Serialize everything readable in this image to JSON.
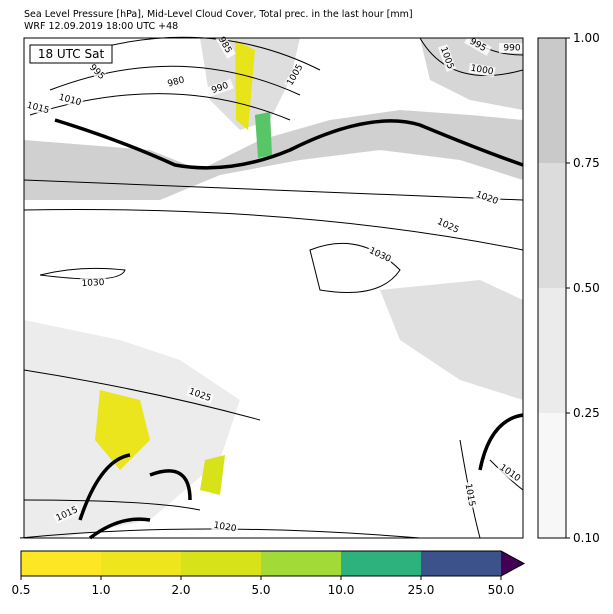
{
  "header": {
    "line1": "Sea Level Pressure [hPa], Mid-Level Cloud Cover, Total prec. in the last hour [mm]",
    "line2": "WRF 12.09.2019 18:00 UTC +48"
  },
  "map": {
    "time_label": "18 UTC Sat",
    "contour_labels": [
      "985",
      "995",
      "980",
      "990",
      "1005",
      "1010",
      "1015",
      "1005",
      "995",
      "990",
      "1000",
      "1020",
      "1025",
      "1030",
      "1030",
      "1025",
      "1020",
      "1015",
      "1015",
      "1010"
    ]
  },
  "cloud_colorbar": {
    "ticks": [
      "0.10",
      "0.25",
      "0.50",
      "0.75",
      "1.00"
    ],
    "colors": [
      "#f7f7f7",
      "#ebebeb",
      "#dcdcdc",
      "#c9c9c9"
    ]
  },
  "precip_colorbar": {
    "ticks": [
      "0.5",
      "1.0",
      "2.0",
      "5.0",
      "10.0",
      "25.0",
      "50.0"
    ],
    "colors": [
      "#fde725",
      "#efe51c",
      "#d7e219",
      "#a2da37",
      "#2db27d",
      "#3b528b"
    ],
    "extend_color": "#440154"
  }
}
